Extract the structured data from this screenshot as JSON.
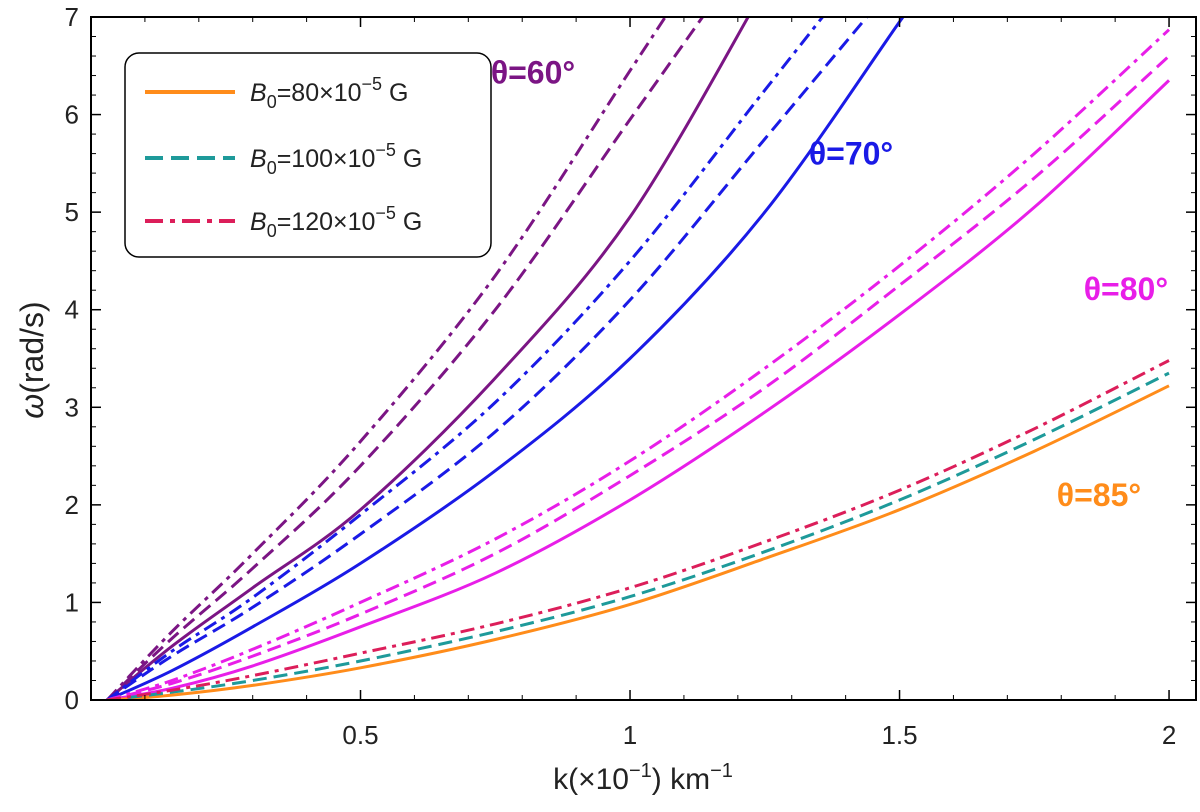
{
  "chart_data": {
    "type": "line",
    "title": "",
    "xlabel": "k(×10",
    "xlabel_sup": "−1",
    "xlabel_tail": ") km",
    "xlabel_tail_sup": "−1",
    "ylabel_symbol": "ω",
    "ylabel_unit": "(rad/s)",
    "xlim": [
      0,
      2.05
    ],
    "ylim": [
      0,
      7
    ],
    "x_ticks": [
      0.5,
      1,
      1.5,
      2
    ],
    "x_tick_labels": [
      "0.5",
      "1",
      "1.5",
      "2"
    ],
    "y_ticks": [
      0,
      1,
      2,
      3,
      4,
      5,
      6,
      7
    ],
    "y_tick_labels": [
      "0",
      "1",
      "2",
      "3",
      "4",
      "5",
      "6",
      "7"
    ],
    "grid": false,
    "legend": {
      "position": "top-left",
      "entries": [
        {
          "base": "B",
          "sub": "0",
          "eq": "=80×10",
          "sup": "−5",
          "unit": " G",
          "color": "#ff8c1a",
          "dash": "solid"
        },
        {
          "base": "B",
          "sub": "0",
          "eq": "=100×10",
          "sup": "−5",
          "unit": " G",
          "color": "#1e9a9a",
          "dash": "dashed"
        },
        {
          "base": "B",
          "sub": "0",
          "eq": "=120×10",
          "sup": "−5",
          "unit": " G",
          "color": "#dc1e5a",
          "dash": "dashdot"
        }
      ]
    },
    "x": [
      0.03,
      0.15,
      0.3,
      0.5,
      0.75,
      1.0,
      1.25,
      1.5,
      1.75,
      2.0
    ],
    "groups": [
      {
        "label": "θ=60°",
        "label_color": "#7b1584",
        "anchor": {
          "x": 0.82,
          "y": 6.32
        },
        "series": [
          {
            "name": "θ=60°, B0=80×10^-5 G",
            "dash": "solid",
            "color": "#7b1584",
            "values": [
              0,
              0.55,
              1.15,
              1.95,
              3.3,
              4.95,
              7.3,
              null,
              null,
              null
            ]
          },
          {
            "name": "θ=60°, B0=100×10^-5 G",
            "dash": "dashed",
            "color": "#7b1584",
            "values": [
              0,
              0.63,
              1.35,
              2.4,
              4.0,
              5.95,
              null,
              null,
              null,
              null
            ]
          },
          {
            "name": "θ=60°, B0=120×10^-5 G",
            "dash": "dashdot",
            "color": "#7b1584",
            "values": [
              0,
              0.7,
              1.5,
              2.65,
              4.35,
              6.45,
              null,
              null,
              null,
              null
            ]
          }
        ]
      },
      {
        "label": "θ=70°",
        "label_color": "#1a1ae6",
        "anchor": {
          "x": 1.41,
          "y": 5.49
        },
        "series": [
          {
            "name": "θ=70°, B0=80×10^-5 G",
            "dash": "solid",
            "color": "#1a1ae6",
            "values": [
              0,
              0.3,
              0.75,
              1.4,
              2.35,
              3.5,
              5.0,
              6.95,
              null,
              null
            ]
          },
          {
            "name": "θ=70°, B0=100×10^-5 G",
            "dash": "dashed",
            "color": "#1a1ae6",
            "values": [
              0,
              0.45,
              0.95,
              1.7,
              2.75,
              4.1,
              5.75,
              null,
              null,
              null
            ]
          },
          {
            "name": "θ=70°, B0=120×10^-5 G",
            "dash": "dashdot",
            "color": "#1a1ae6",
            "values": [
              0,
              0.5,
              1.05,
              1.9,
              3.05,
              4.5,
              6.25,
              null,
              null,
              null
            ]
          }
        ]
      },
      {
        "label": "θ=80°",
        "label_color": "#e81ee8",
        "anchor": {
          "x": 1.92,
          "y": 4.1
        },
        "series": [
          {
            "name": "θ=80°, B0=80×10^-5 G",
            "dash": "solid",
            "color": "#e81ee8",
            "values": [
              0,
              0.12,
              0.35,
              0.75,
              1.3,
              2.05,
              2.95,
              3.95,
              5.05,
              6.35
            ]
          },
          {
            "name": "θ=80°, B0=100×10^-5 G",
            "dash": "dashed",
            "color": "#e81ee8",
            "values": [
              0,
              0.17,
              0.45,
              0.88,
              1.5,
              2.3,
              3.2,
              4.25,
              5.35,
              6.6
            ]
          },
          {
            "name": "θ=80°, B0=120×10^-5 G",
            "dash": "dashdot",
            "color": "#e81ee8",
            "values": [
              0,
              0.2,
              0.52,
              1.0,
              1.65,
              2.45,
              3.4,
              4.45,
              5.6,
              6.87
            ]
          }
        ]
      },
      {
        "label": "θ=85°",
        "label_color": "#ff8c1a",
        "anchor": {
          "x": 1.87,
          "y": 1.99
        },
        "series": [
          {
            "name": "θ=85°, B0=80×10^-5 G",
            "dash": "solid",
            "color": "#ff8c1a",
            "values": [
              0,
              0.05,
              0.15,
              0.33,
              0.62,
              0.98,
              1.45,
              1.95,
              2.55,
              3.22
            ]
          },
          {
            "name": "θ=85°, B0=100×10^-5 G",
            "dash": "dashed",
            "color": "#1e9a9a",
            "values": [
              0,
              0.08,
              0.2,
              0.4,
              0.7,
              1.06,
              1.52,
              2.05,
              2.67,
              3.35
            ]
          },
          {
            "name": "θ=85°, B0=120×10^-5 G",
            "dash": "dashdot",
            "color": "#dc1e5a",
            "values": [
              0,
              0.1,
              0.25,
              0.48,
              0.78,
              1.15,
              1.62,
              2.15,
              2.78,
              3.48
            ]
          }
        ]
      }
    ]
  }
}
